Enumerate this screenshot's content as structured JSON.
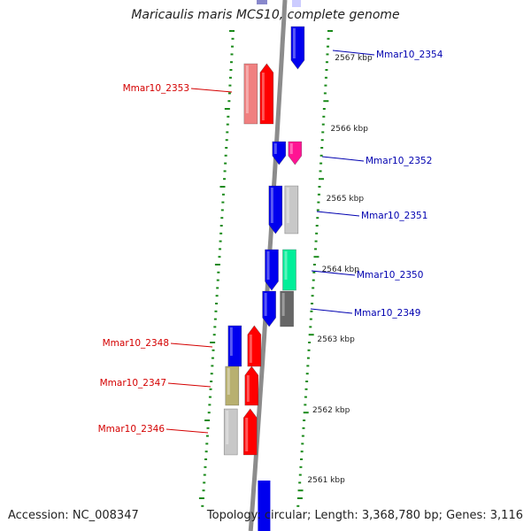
{
  "title": "Maricaulis maris MCS10, complete genome",
  "footer": {
    "accession": "Accession: NC_008347",
    "summary": "Topology: circular; Length: 3,368,780 bp; Genes: 3,116"
  },
  "colors": {
    "backbone": "#8c8c8c",
    "tick": "#1a8a1a",
    "left_label": "#d40000",
    "right_label": "#0000b0"
  },
  "scale_labels": [
    "2567 kbp",
    "2566 kbp",
    "2565 kbp",
    "2564 kbp",
    "2563 kbp",
    "2562 kbp",
    "2561 kbp"
  ],
  "genes": [
    {
      "label": "Mmar10_2354",
      "side": "right",
      "colors": [
        "#0000ee"
      ]
    },
    {
      "label": "Mmar10_2353",
      "side": "left",
      "colors": [
        "#f08080",
        "#ff0000"
      ]
    },
    {
      "label": "Mmar10_2352",
      "side": "right",
      "colors": [
        "#0000ee",
        "#ff1493"
      ]
    },
    {
      "label": "Mmar10_2351",
      "side": "right",
      "colors": [
        "#0000ee",
        "#c8c8c8"
      ]
    },
    {
      "label": "Mmar10_2350",
      "side": "right",
      "colors": [
        "#0000ee",
        "#00ee99"
      ]
    },
    {
      "label": "Mmar10_2349",
      "side": "right",
      "colors": [
        "#0000ee",
        "#666666"
      ]
    },
    {
      "label": "Mmar10_2348",
      "side": "left",
      "colors": [
        "#0000ee",
        "#ff0000"
      ]
    },
    {
      "label": "Mmar10_2347",
      "side": "left",
      "colors": [
        "#b8b070",
        "#ff0000"
      ]
    },
    {
      "label": "Mmar10_2346",
      "side": "left",
      "colors": [
        "#c8c8c8",
        "#ff0000"
      ]
    }
  ]
}
